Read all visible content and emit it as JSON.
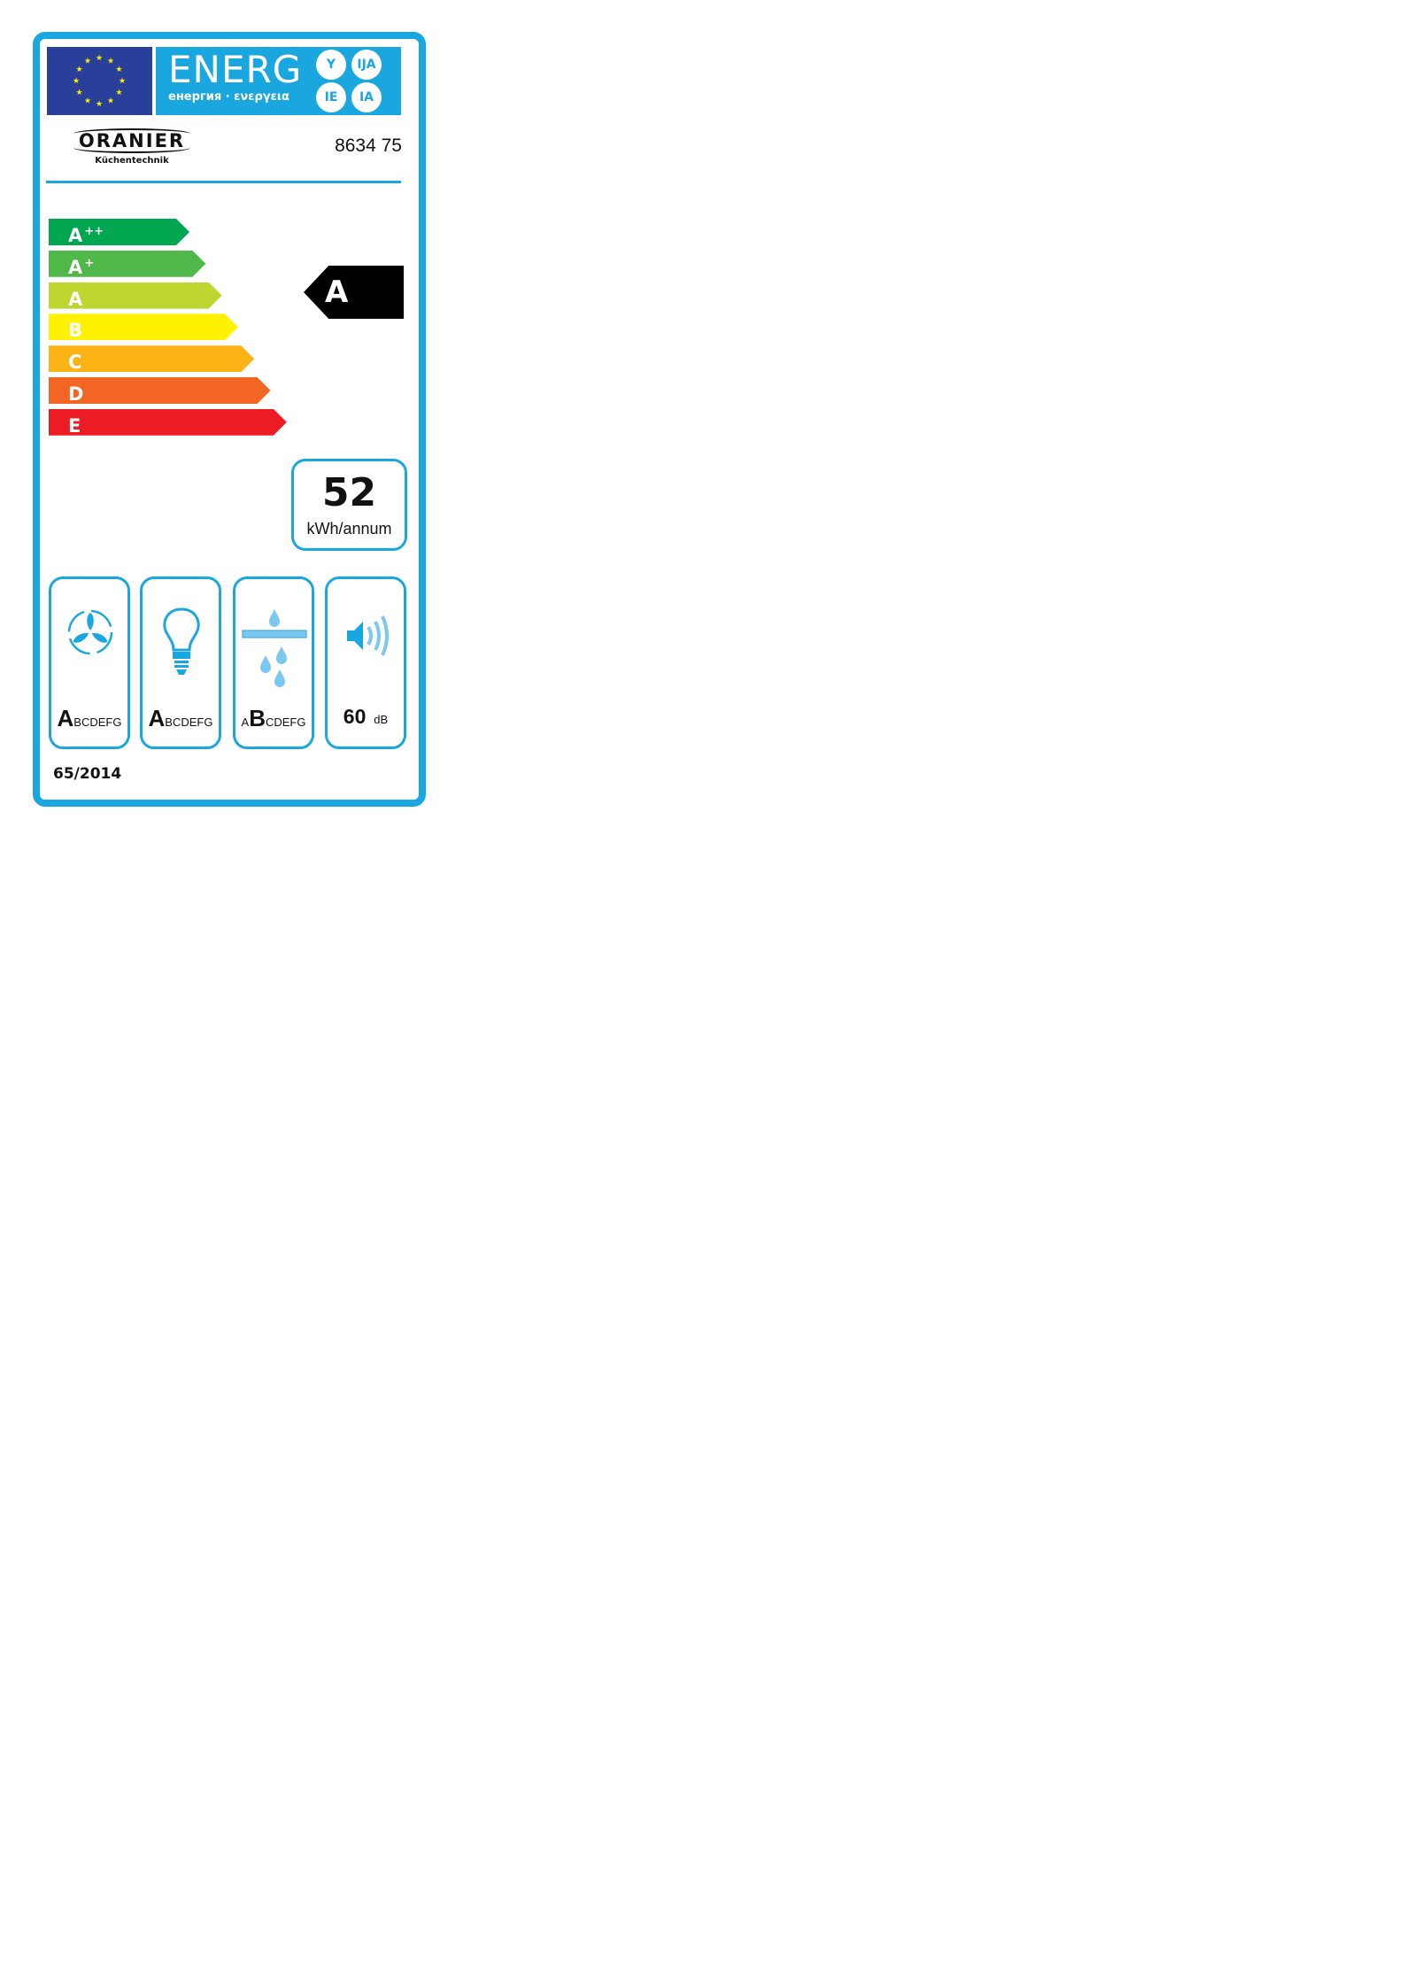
{
  "header": {
    "title": "ENERG",
    "subtitle": "енергия · ενεργεια",
    "language_badges": [
      "Y",
      "IJA",
      "IE",
      "IA"
    ]
  },
  "brand": {
    "name": "ORANIER",
    "tagline": "Küchentechnik"
  },
  "model": "8634 75",
  "scale": [
    {
      "letter": "A",
      "sup": "++",
      "color": "#00a650"
    },
    {
      "letter": "A",
      "sup": "+",
      "color": "#50b848"
    },
    {
      "letter": "A",
      "sup": "",
      "color": "#bed62f"
    },
    {
      "letter": "B",
      "sup": "",
      "color": "#fff200"
    },
    {
      "letter": "C",
      "sup": "",
      "color": "#fcb316"
    },
    {
      "letter": "D",
      "sup": "",
      "color": "#f26522"
    },
    {
      "letter": "E",
      "sup": "",
      "color": "#ed1c24"
    }
  ],
  "rating": "A",
  "consumption": {
    "value": "52",
    "unit": "kWh/annum"
  },
  "icons": [
    {
      "icon": "fan-icon",
      "before": "",
      "class": "A",
      "after": "BCDEFG"
    },
    {
      "icon": "light-bulb-icon",
      "before": "",
      "class": "A",
      "after": "BCDEFG"
    },
    {
      "icon": "grease-filter-icon",
      "before": "A",
      "class": "B",
      "after": "CDEFG"
    },
    {
      "icon": "speaker-icon",
      "value": "60",
      "unit": "dB"
    }
  ],
  "regulation": "65/2014",
  "colors": {
    "frame": "#1aa7e0",
    "eu_blue": "#2a3f9a",
    "stars": "#ffed00"
  }
}
